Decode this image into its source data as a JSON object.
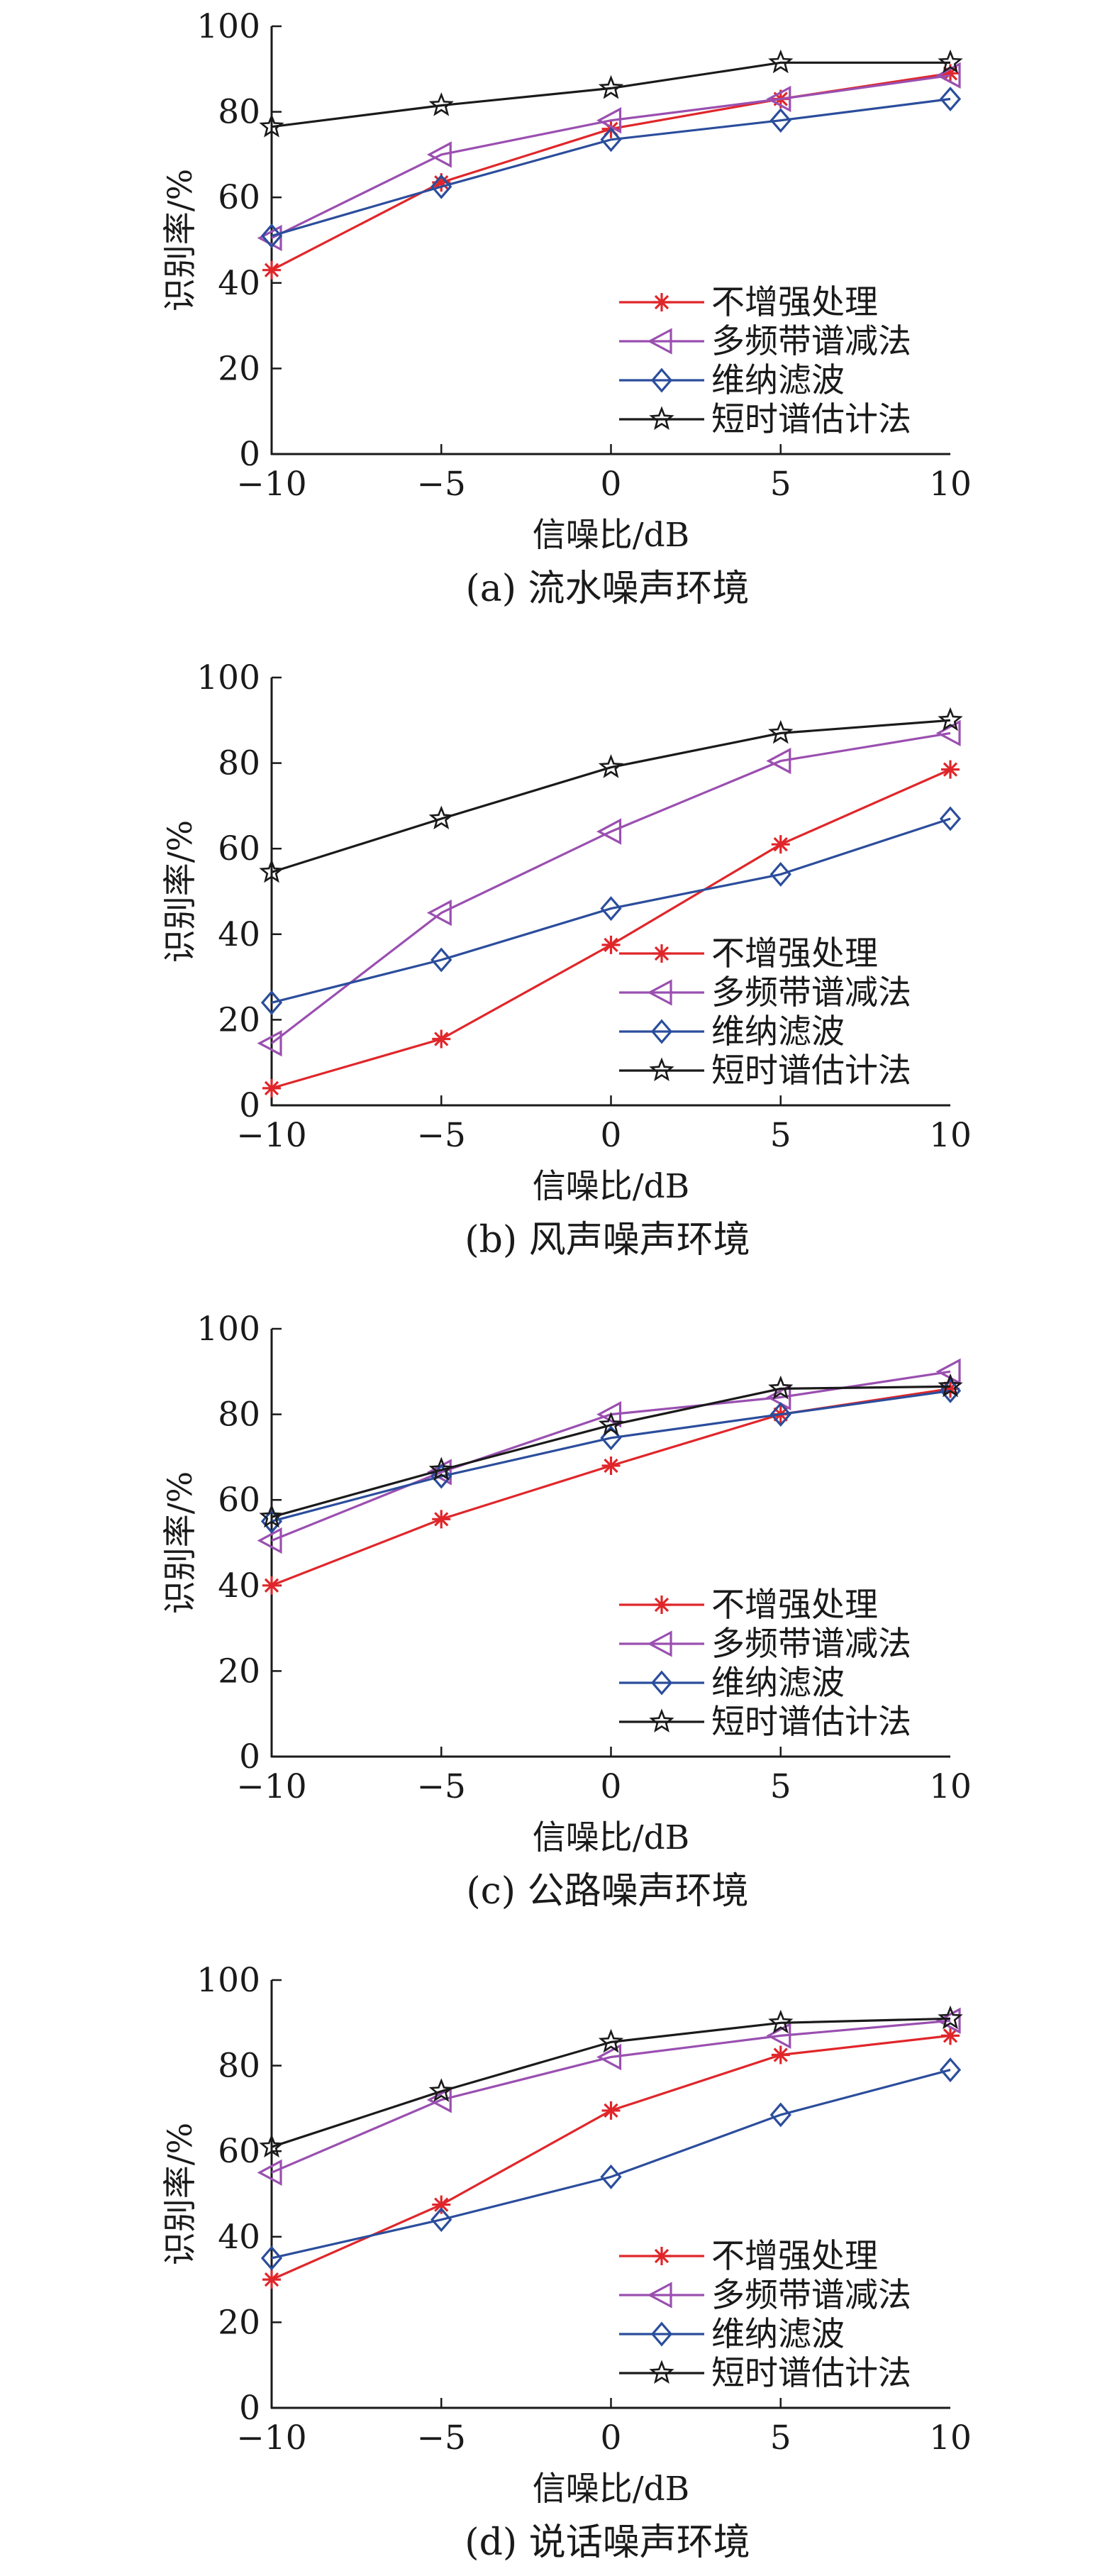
{
  "chart_data": [
    {
      "type": "line",
      "title": "(a) 流水噪声环境",
      "xlabel": "信噪比/dB",
      "ylabel": "识别率/%",
      "x": [
        -10,
        -5,
        0,
        5,
        10
      ],
      "xticks": [
        "−10",
        "−5",
        "0",
        "5",
        "10"
      ],
      "yticks": [
        "0",
        "20",
        "40",
        "60",
        "80",
        "100"
      ],
      "xlim": [
        -10,
        10
      ],
      "ylim": [
        0,
        100
      ],
      "legend_position": "bottom-right",
      "series": [
        {
          "name": "不增强处理",
          "marker": "plus",
          "color": "#e0262a",
          "values": [
            43,
            63.5,
            76,
            83,
            89
          ]
        },
        {
          "name": "多频带谱减法",
          "marker": "triangle-left",
          "color": "#9a4fb0",
          "values": [
            50.5,
            70,
            78,
            83,
            88.5
          ]
        },
        {
          "name": "维纳滤波",
          "marker": "diamond",
          "color": "#2b4d9c",
          "values": [
            51,
            62.5,
            73.5,
            78,
            83
          ]
        },
        {
          "name": "短时谱估计法",
          "marker": "star",
          "color": "#1a1a1a",
          "values": [
            76.5,
            81.5,
            85.5,
            91.5,
            91.5
          ]
        }
      ]
    },
    {
      "type": "line",
      "title": "(b) 风声噪声环境",
      "xlabel": "信噪比/dB",
      "ylabel": "识别率/%",
      "x": [
        -10,
        -5,
        0,
        5,
        10
      ],
      "xticks": [
        "−10",
        "−5",
        "0",
        "5",
        "10"
      ],
      "yticks": [
        "0",
        "20",
        "40",
        "60",
        "80",
        "100"
      ],
      "xlim": [
        -10,
        10
      ],
      "ylim": [
        0,
        100
      ],
      "legend_position": "bottom-right",
      "series": [
        {
          "name": "不增强处理",
          "marker": "plus",
          "color": "#e0262a",
          "values": [
            4,
            15.5,
            37.5,
            61,
            78.5
          ]
        },
        {
          "name": "多频带谱减法",
          "marker": "triangle-left",
          "color": "#9a4fb0",
          "values": [
            14.5,
            45,
            64,
            80.5,
            87
          ]
        },
        {
          "name": "维纳滤波",
          "marker": "diamond",
          "color": "#2b4d9c",
          "values": [
            24,
            34,
            46,
            54,
            67
          ]
        },
        {
          "name": "短时谱估计法",
          "marker": "star",
          "color": "#1a1a1a",
          "values": [
            54.5,
            67,
            79,
            87,
            90
          ]
        }
      ]
    },
    {
      "type": "line",
      "title": "(c) 公路噪声环境",
      "xlabel": "信噪比/dB",
      "ylabel": "识别率/%",
      "x": [
        -10,
        -5,
        0,
        5,
        10
      ],
      "xticks": [
        "−10",
        "−5",
        "0",
        "5",
        "10"
      ],
      "yticks": [
        "0",
        "20",
        "40",
        "60",
        "80",
        "100"
      ],
      "xlim": [
        -10,
        10
      ],
      "ylim": [
        0,
        100
      ],
      "legend_position": "bottom-right",
      "series": [
        {
          "name": "不增强处理",
          "marker": "plus",
          "color": "#e0262a",
          "values": [
            40,
            55.5,
            68,
            80,
            86
          ]
        },
        {
          "name": "多频带谱减法",
          "marker": "triangle-left",
          "color": "#9a4fb0",
          "values": [
            50.5,
            66.5,
            80,
            84,
            90
          ]
        },
        {
          "name": "维纳滤波",
          "marker": "diamond",
          "color": "#2b4d9c",
          "values": [
            55,
            65.5,
            74.5,
            80,
            85.5
          ]
        },
        {
          "name": "短时谱估计法",
          "marker": "star",
          "color": "#1a1a1a",
          "values": [
            56,
            67,
            77.5,
            86,
            86.5
          ]
        }
      ]
    },
    {
      "type": "line",
      "title": "(d) 说话噪声环境",
      "xlabel": "信噪比/dB",
      "ylabel": "识别率/%",
      "x": [
        -10,
        -5,
        0,
        5,
        10
      ],
      "xticks": [
        "−10",
        "−5",
        "0",
        "5",
        "10"
      ],
      "yticks": [
        "0",
        "20",
        "40",
        "60",
        "80",
        "100"
      ],
      "xlim": [
        -10,
        10
      ],
      "ylim": [
        0,
        100
      ],
      "legend_position": "bottom-right",
      "series": [
        {
          "name": "不增强处理",
          "marker": "plus",
          "color": "#e0262a",
          "values": [
            30,
            47.5,
            69.5,
            82.5,
            87
          ]
        },
        {
          "name": "多频带谱减法",
          "marker": "triangle-left",
          "color": "#9a4fb0",
          "values": [
            55,
            72,
            82,
            87,
            90.5
          ]
        },
        {
          "name": "维纳滤波",
          "marker": "diamond",
          "color": "#2b4d9c",
          "values": [
            35,
            44,
            54,
            68.5,
            79
          ]
        },
        {
          "name": "短时谱估计法",
          "marker": "star",
          "color": "#1a1a1a",
          "values": [
            61,
            74,
            85.5,
            90,
            91
          ]
        }
      ]
    }
  ]
}
